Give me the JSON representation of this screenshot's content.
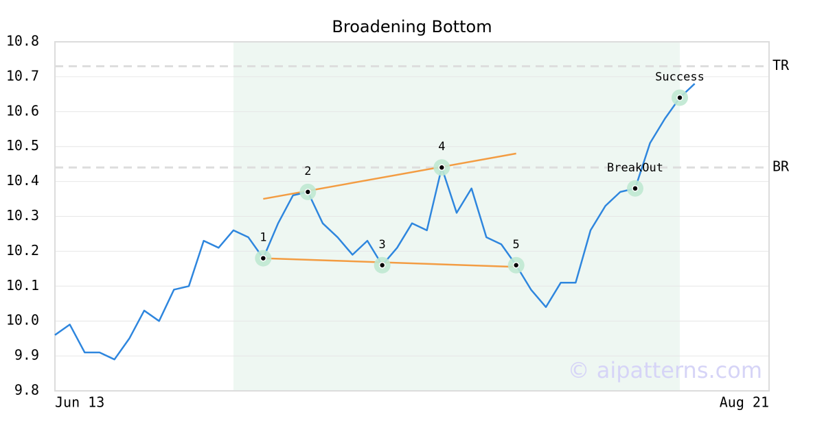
{
  "chart_data": {
    "type": "line",
    "title": "Broadening Bottom",
    "categories": [
      "Jun 13",
      null,
      null,
      null,
      null,
      null,
      null,
      null,
      null,
      null,
      null,
      null,
      null,
      null,
      null,
      null,
      null,
      null,
      null,
      null,
      null,
      null,
      null,
      null,
      null,
      null,
      null,
      null,
      null,
      null,
      null,
      null,
      null,
      null,
      null,
      null,
      null,
      null,
      null,
      null,
      null,
      null,
      null,
      null,
      null,
      null,
      null,
      null,
      "Aug 21"
    ],
    "values": [
      9.96,
      9.99,
      9.91,
      9.91,
      9.89,
      9.95,
      10.03,
      10.0,
      10.09,
      10.1,
      10.23,
      10.21,
      10.26,
      10.24,
      10.18,
      10.28,
      10.36,
      10.37,
      10.28,
      10.24,
      10.19,
      10.23,
      10.16,
      10.21,
      10.28,
      10.26,
      10.44,
      10.31,
      10.38,
      10.24,
      10.22,
      10.16,
      10.09,
      10.04,
      10.11,
      10.11,
      10.26,
      10.33,
      10.37,
      10.38,
      10.51,
      10.58,
      10.64,
      10.68,
      null,
      null,
      null,
      null,
      null
    ],
    "color": "#2e86de",
    "ylim": [
      9.8,
      10.8
    ],
    "yticks": [
      9.8,
      9.9,
      {
        "value": 10.0,
        "label": "10.0"
      },
      10.1,
      10.2,
      10.3,
      10.4,
      10.5,
      10.6,
      10.7,
      10.8
    ],
    "grid": true,
    "highlight_range": [
      12,
      42
    ],
    "highlight_color": "#eef7f2",
    "markers": [
      {
        "label": "1",
        "x": 14,
        "value": 10.18
      },
      {
        "label": "2",
        "x": 17,
        "value": 10.37
      },
      {
        "label": "3",
        "x": 22,
        "value": 10.16
      },
      {
        "label": "4",
        "x": 26,
        "value": 10.44
      },
      {
        "label": "5",
        "x": 31,
        "value": 10.16
      },
      {
        "label": "BreakOut",
        "x": 39,
        "value": 10.38
      },
      {
        "label": "Success",
        "x": 42,
        "value": 10.64
      }
    ],
    "trend_lines": [
      {
        "x": [
          14,
          31
        ],
        "values": [
          10.35,
          10.48
        ],
        "color": "#f39c42"
      },
      {
        "x": [
          14,
          31
        ],
        "values": [
          10.18,
          10.155
        ],
        "color": "#f39c42"
      }
    ],
    "levels": [
      {
        "label": "TR",
        "value": 10.73
      },
      {
        "label": "BR",
        "value": 10.44
      }
    ],
    "watermark": "© aipatterns.com"
  }
}
